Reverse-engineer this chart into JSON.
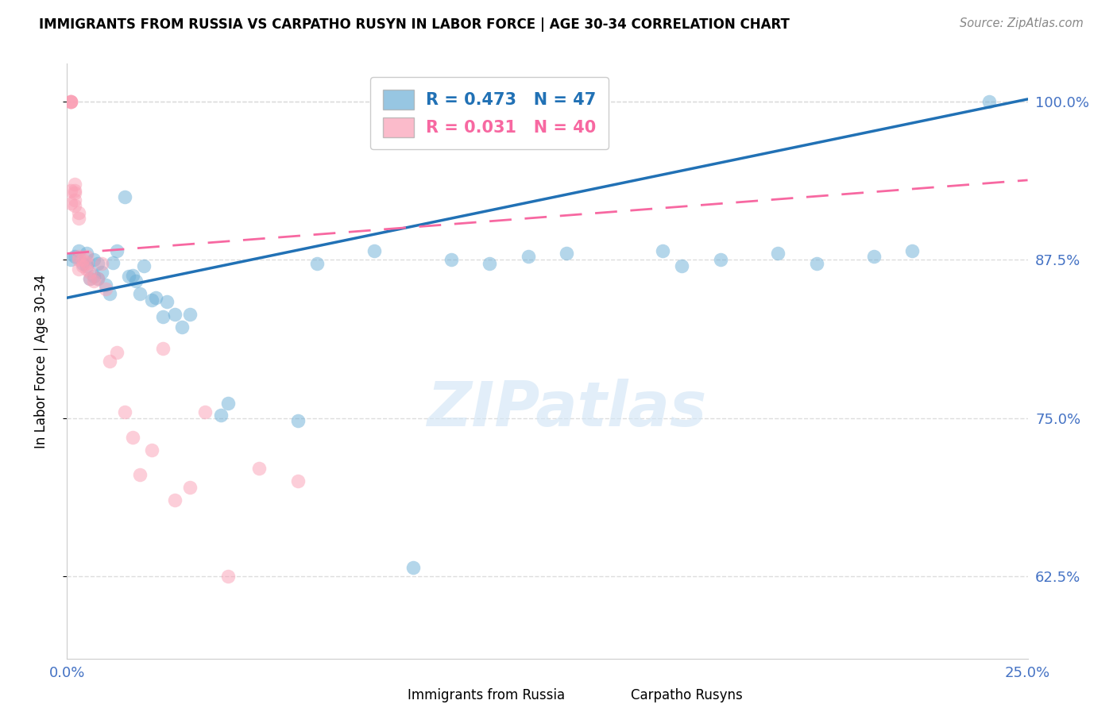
{
  "title": "IMMIGRANTS FROM RUSSIA VS CARPATHO RUSYN IN LABOR FORCE | AGE 30-34 CORRELATION CHART",
  "source": "Source: ZipAtlas.com",
  "ylabel": "In Labor Force | Age 30-34",
  "xlim": [
    0.0,
    0.25
  ],
  "ylim": [
    0.56,
    1.03
  ],
  "yticks": [
    0.625,
    0.75,
    0.875,
    1.0
  ],
  "ytick_labels": [
    "62.5%",
    "75.0%",
    "87.5%",
    "100.0%"
  ],
  "xticks": [
    0.0,
    0.05,
    0.1,
    0.15,
    0.2,
    0.25
  ],
  "xtick_labels": [
    "0.0%",
    "",
    "",
    "",
    "",
    "25.0%"
  ],
  "blue_color": "#6baed6",
  "pink_color": "#fa9fb5",
  "blue_line_color": "#2171b5",
  "pink_line_color": "#f768a1",
  "axis_color": "#4472c4",
  "legend_R_blue": "R = 0.473",
  "legend_N_blue": "N = 47",
  "legend_R_pink": "R = 0.031",
  "legend_N_pink": "N = 40",
  "legend_label_blue": "Immigrants from Russia",
  "legend_label_pink": "Carpatho Rusyns",
  "watermark": "ZIPatlas",
  "blue_x": [
    0.001,
    0.002,
    0.003,
    0.004,
    0.005,
    0.005,
    0.006,
    0.007,
    0.007,
    0.008,
    0.008,
    0.009,
    0.01,
    0.011,
    0.012,
    0.013,
    0.015,
    0.016,
    0.017,
    0.018,
    0.019,
    0.02,
    0.022,
    0.023,
    0.025,
    0.026,
    0.028,
    0.03,
    0.032,
    0.04,
    0.042,
    0.06,
    0.065,
    0.08,
    0.09,
    0.1,
    0.11,
    0.12,
    0.13,
    0.155,
    0.16,
    0.17,
    0.185,
    0.195,
    0.21,
    0.22,
    0.24
  ],
  "blue_y": [
    0.875,
    0.878,
    0.882,
    0.872,
    0.87,
    0.88,
    0.86,
    0.862,
    0.875,
    0.86,
    0.872,
    0.865,
    0.855,
    0.848,
    0.873,
    0.882,
    0.925,
    0.862,
    0.863,
    0.858,
    0.848,
    0.87,
    0.843,
    0.845,
    0.83,
    0.842,
    0.832,
    0.822,
    0.832,
    0.752,
    0.762,
    0.748,
    0.872,
    0.882,
    0.632,
    0.875,
    0.872,
    0.878,
    0.88,
    0.882,
    0.87,
    0.875,
    0.88,
    0.872,
    0.878,
    0.882,
    1.0
  ],
  "pink_x": [
    0.001,
    0.001,
    0.001,
    0.001,
    0.001,
    0.001,
    0.002,
    0.002,
    0.002,
    0.002,
    0.002,
    0.003,
    0.003,
    0.003,
    0.003,
    0.003,
    0.004,
    0.004,
    0.005,
    0.005,
    0.005,
    0.006,
    0.006,
    0.007,
    0.008,
    0.009,
    0.01,
    0.011,
    0.013,
    0.015,
    0.017,
    0.019,
    0.022,
    0.025,
    0.028,
    0.032,
    0.036,
    0.042,
    0.05,
    0.06
  ],
  "pink_y": [
    1.0,
    1.0,
    1.0,
    1.0,
    0.93,
    0.92,
    0.935,
    0.93,
    0.928,
    0.922,
    0.918,
    0.912,
    0.908,
    0.878,
    0.875,
    0.868,
    0.875,
    0.87,
    0.878,
    0.873,
    0.868,
    0.865,
    0.86,
    0.858,
    0.86,
    0.872,
    0.852,
    0.795,
    0.802,
    0.755,
    0.735,
    0.705,
    0.725,
    0.805,
    0.685,
    0.695,
    0.755,
    0.625,
    0.71,
    0.7
  ],
  "blue_trend_x": [
    0.0,
    0.25
  ],
  "blue_trend_y": [
    0.845,
    1.002
  ],
  "pink_trend_x": [
    0.0,
    0.25
  ],
  "pink_trend_y": [
    0.88,
    0.938
  ]
}
